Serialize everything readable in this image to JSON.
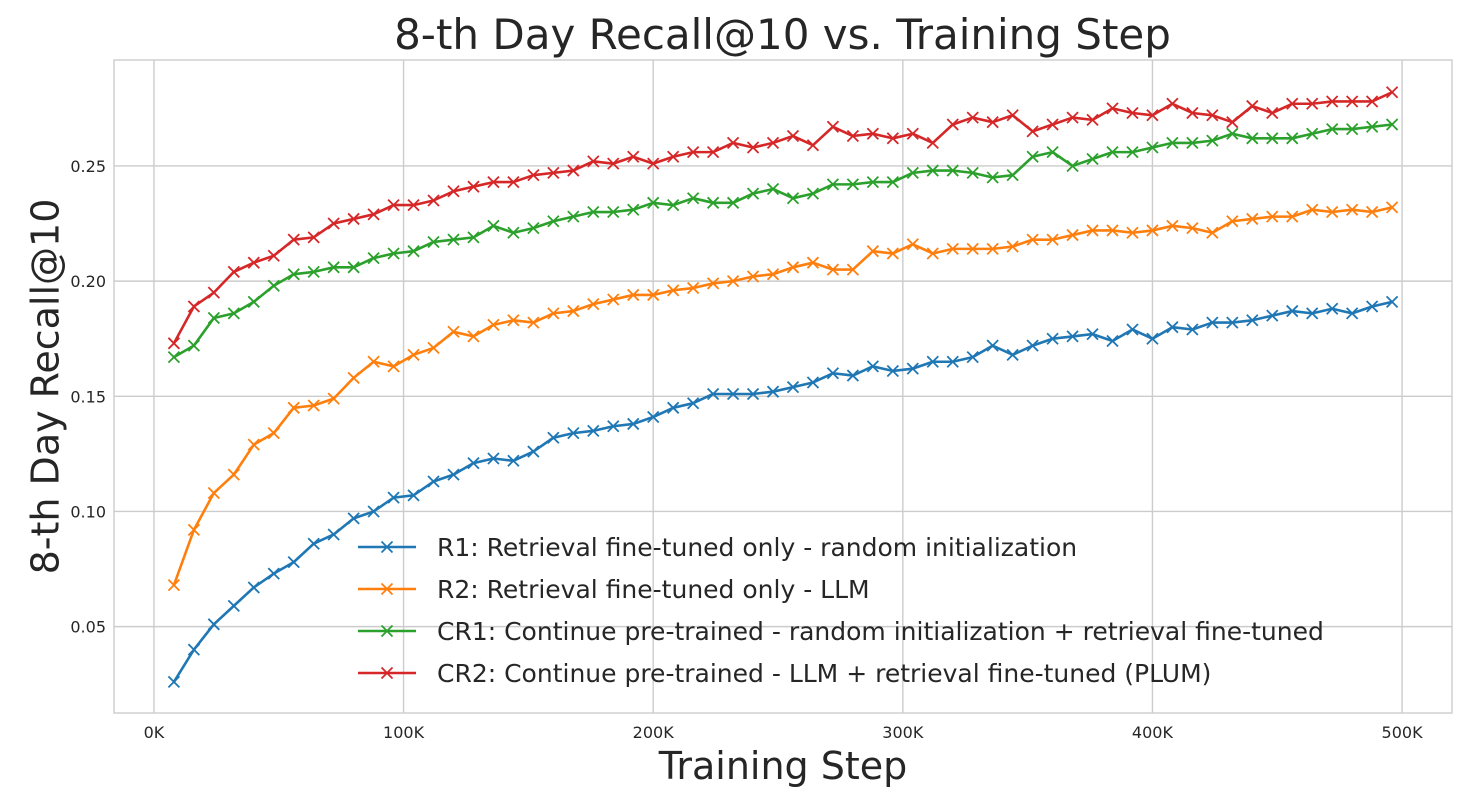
{
  "chart_data": {
    "type": "line",
    "title": "8-th Day Recall@10 vs. Training Step",
    "xlabel": "Training Step",
    "ylabel": "8-th Day Recall@10",
    "xlim": [
      -16000,
      520000
    ],
    "ylim": [
      0.0125,
      0.296
    ],
    "xticks": [
      0,
      100000,
      200000,
      300000,
      400000,
      500000
    ],
    "xtick_labels": [
      "0K",
      "100K",
      "200K",
      "300K",
      "400K",
      "500K"
    ],
    "yticks": [
      0.05,
      0.1,
      0.15,
      0.2,
      0.25
    ],
    "ytick_labels": [
      "0.05",
      "0.10",
      "0.15",
      "0.20",
      "0.25"
    ],
    "grid": true,
    "legend_position": "lower-right",
    "marker": "x",
    "x": [
      8000,
      16000,
      24000,
      32000,
      40000,
      48000,
      56000,
      64000,
      72000,
      80000,
      88000,
      96000,
      104000,
      112000,
      120000,
      128000,
      136000,
      144000,
      152000,
      160000,
      168000,
      176000,
      184000,
      192000,
      200000,
      208000,
      216000,
      224000,
      232000,
      240000,
      248000,
      256000,
      264000,
      272000,
      280000,
      288000,
      296000,
      304000,
      312000,
      320000,
      328000,
      336000,
      344000,
      352000,
      360000,
      368000,
      376000,
      384000,
      392000,
      400000,
      408000,
      416000,
      424000,
      432000,
      440000,
      448000,
      456000,
      464000,
      472000,
      480000,
      488000,
      496000
    ],
    "series": [
      {
        "name": "R1: Retrieval fine-tuned only - random initialization",
        "color": "#1f77b4",
        "values": [
          0.026,
          0.04,
          0.051,
          0.059,
          0.067,
          0.073,
          0.078,
          0.086,
          0.09,
          0.097,
          0.1,
          0.106,
          0.107,
          0.113,
          0.116,
          0.121,
          0.123,
          0.122,
          0.126,
          0.132,
          0.134,
          0.135,
          0.137,
          0.138,
          0.141,
          0.145,
          0.147,
          0.151,
          0.151,
          0.151,
          0.152,
          0.154,
          0.156,
          0.16,
          0.159,
          0.163,
          0.161,
          0.162,
          0.165,
          0.165,
          0.167,
          0.172,
          0.168,
          0.172,
          0.175,
          0.176,
          0.177,
          0.174,
          0.179,
          0.175,
          0.18,
          0.179,
          0.182,
          0.182,
          0.183,
          0.185,
          0.187,
          0.186,
          0.188,
          0.186,
          0.189,
          0.191
        ]
      },
      {
        "name": "R2: Retrieval fine-tuned only - LLM",
        "color": "#ff7f0e",
        "values": [
          0.068,
          0.092,
          0.108,
          0.116,
          0.129,
          0.134,
          0.145,
          0.146,
          0.149,
          0.158,
          0.165,
          0.163,
          0.168,
          0.171,
          0.178,
          0.176,
          0.181,
          0.183,
          0.182,
          0.186,
          0.187,
          0.19,
          0.192,
          0.194,
          0.194,
          0.196,
          0.197,
          0.199,
          0.2,
          0.202,
          0.203,
          0.206,
          0.208,
          0.205,
          0.205,
          0.213,
          0.212,
          0.216,
          0.212,
          0.214,
          0.214,
          0.214,
          0.215,
          0.218,
          0.218,
          0.22,
          0.222,
          0.222,
          0.221,
          0.222,
          0.224,
          0.223,
          0.221,
          0.226,
          0.227,
          0.228,
          0.228,
          0.231,
          0.23,
          0.231,
          0.23,
          0.232
        ]
      },
      {
        "name": "CR1: Continue pre-trained - random initialization + retrieval fine-tuned",
        "color": "#2ca02c",
        "values": [
          0.167,
          0.172,
          0.184,
          0.186,
          0.191,
          0.198,
          0.203,
          0.204,
          0.206,
          0.206,
          0.21,
          0.212,
          0.213,
          0.217,
          0.218,
          0.219,
          0.224,
          0.221,
          0.223,
          0.226,
          0.228,
          0.23,
          0.23,
          0.231,
          0.234,
          0.233,
          0.236,
          0.234,
          0.234,
          0.238,
          0.24,
          0.236,
          0.238,
          0.242,
          0.242,
          0.243,
          0.243,
          0.247,
          0.248,
          0.248,
          0.247,
          0.245,
          0.246,
          0.254,
          0.256,
          0.25,
          0.253,
          0.256,
          0.256,
          0.258,
          0.26,
          0.26,
          0.261,
          0.264,
          0.262,
          0.262,
          0.262,
          0.264,
          0.266,
          0.266,
          0.267,
          0.268
        ]
      },
      {
        "name": "CR2: Continue pre-trained - LLM + retrieval fine-tuned (PLUM)",
        "color": "#d62728",
        "values": [
          0.173,
          0.189,
          0.195,
          0.204,
          0.208,
          0.211,
          0.218,
          0.219,
          0.225,
          0.227,
          0.229,
          0.233,
          0.233,
          0.235,
          0.239,
          0.241,
          0.243,
          0.243,
          0.246,
          0.247,
          0.248,
          0.252,
          0.251,
          0.254,
          0.251,
          0.254,
          0.256,
          0.256,
          0.26,
          0.258,
          0.26,
          0.263,
          0.259,
          0.267,
          0.263,
          0.264,
          0.262,
          0.264,
          0.26,
          0.268,
          0.271,
          0.269,
          0.272,
          0.265,
          0.268,
          0.271,
          0.27,
          0.275,
          0.273,
          0.272,
          0.277,
          0.273,
          0.272,
          0.269,
          0.276,
          0.273,
          0.277,
          0.277,
          0.278,
          0.278,
          0.278,
          0.282
        ]
      }
    ]
  }
}
